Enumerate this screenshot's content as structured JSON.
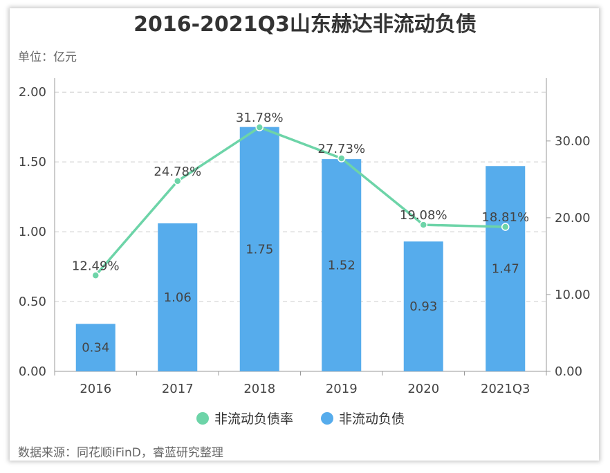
{
  "title": "2016-2021Q3山东赫达非流动负债",
  "unit_label": "单位：亿元",
  "source": "数据来源：同花顺iFinD，睿蓝研究整理",
  "chart_data": {
    "type": "bar",
    "categories": [
      "2016",
      "2017",
      "2018",
      "2019",
      "2020",
      "2021Q3"
    ],
    "series": [
      {
        "name": "非流动负债",
        "type": "bar",
        "axis": "left",
        "values": [
          0.34,
          1.06,
          1.75,
          1.52,
          0.93,
          1.47
        ],
        "labels": [
          "0.34",
          "1.06",
          "1.75",
          "1.52",
          "0.93",
          "1.47"
        ],
        "color": "#56acec"
      },
      {
        "name": "非流动负债率",
        "type": "line",
        "axis": "right",
        "values": [
          12.49,
          24.78,
          31.78,
          27.73,
          19.08,
          18.81
        ],
        "labels": [
          "12.49%",
          "24.78%",
          "31.78%",
          "27.73%",
          "19.08%",
          "18.81%"
        ],
        "color": "#6dd4a8"
      }
    ],
    "y_left": {
      "min": 0,
      "max": 2.1,
      "ticks": [
        "0.00",
        "0.50",
        "1.00",
        "1.50",
        "2.00"
      ]
    },
    "y_right": {
      "min": 0,
      "max": 38.18,
      "ticks": [
        "0.00",
        "10.00",
        "20.00",
        "30.00"
      ]
    },
    "grid": true,
    "legend_position": "bottom-center"
  }
}
